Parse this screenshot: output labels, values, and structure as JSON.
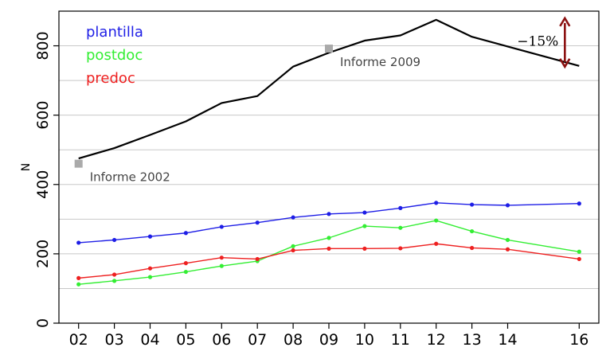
{
  "chart_data": {
    "type": "line",
    "ylabel": "N",
    "ylim": [
      0,
      900
    ],
    "yticks": [
      0,
      200,
      400,
      600,
      800
    ],
    "grid": "horizontal",
    "categories": [
      "02",
      "03",
      "04",
      "05",
      "06",
      "07",
      "08",
      "09",
      "10",
      "11",
      "12",
      "13",
      "14",
      "16"
    ],
    "x": [
      2,
      3,
      4,
      5,
      6,
      7,
      8,
      9,
      10,
      11,
      12,
      13,
      14,
      16
    ],
    "series": [
      {
        "name": "",
        "color": "#000000",
        "markers": false,
        "values": [
          475,
          505,
          543,
          582,
          635,
          655,
          740,
          780,
          815,
          830,
          875,
          826,
          798,
          742
        ]
      },
      {
        "name": "plantilla",
        "color": "#1e1ee6",
        "markers": true,
        "values": [
          232,
          240,
          250,
          260,
          278,
          290,
          305,
          315,
          319,
          332,
          347,
          342,
          340,
          345
        ]
      },
      {
        "name": "postdoc",
        "color": "#33ee33",
        "markers": true,
        "values": [
          112,
          122,
          133,
          148,
          165,
          179,
          222,
          246,
          280,
          275,
          296,
          265,
          240,
          206
        ]
      },
      {
        "name": "predoc",
        "color": "#ee2020",
        "markers": true,
        "values": [
          130,
          140,
          158,
          173,
          189,
          185,
          210,
          215,
          215,
          216,
          229,
          217,
          213,
          185
        ]
      }
    ],
    "legend": {
      "position": "top-left",
      "entries": [
        {
          "label": "plantilla",
          "color": "#1e1ee6"
        },
        {
          "label": "postdoc",
          "color": "#33ee33"
        },
        {
          "label": "predoc",
          "color": "#ee2020"
        }
      ]
    },
    "annotations": [
      {
        "text": "Informe 2002",
        "x": 2,
        "y": 460,
        "marker_color": "#aaaaaa"
      },
      {
        "text": "Informe 2009",
        "x": 9,
        "y": 792,
        "marker_color": "#aaaaaa"
      },
      {
        "text": "−15%",
        "kind": "double-arrow",
        "x": 16,
        "y_from": 875,
        "y_to": 742,
        "color": "#8b1010"
      }
    ]
  }
}
